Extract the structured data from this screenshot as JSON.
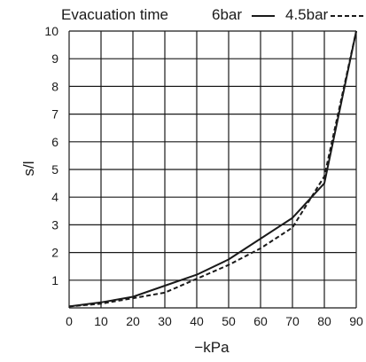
{
  "chart_data": {
    "type": "line",
    "title": "Evacuation time",
    "xlabel": "−kPa",
    "ylabel": "s/l",
    "xlim": [
      0,
      90
    ],
    "ylim": [
      0,
      10
    ],
    "x_ticks": [
      "0",
      "10",
      "20",
      "30",
      "40",
      "50",
      "60",
      "70",
      "80",
      "90"
    ],
    "y_ticks": [
      "1",
      "2",
      "3",
      "4",
      "5",
      "6",
      "7",
      "8",
      "9",
      "10"
    ],
    "grid": true,
    "legend_placement": "top-right",
    "series": [
      {
        "name": "6bar",
        "style": "solid",
        "color": "#1a1a1a",
        "x": [
          0,
          10,
          20,
          30,
          40,
          50,
          60,
          70,
          80,
          90
        ],
        "y": [
          0.05,
          0.2,
          0.4,
          0.8,
          1.2,
          1.75,
          2.5,
          3.25,
          4.5,
          10
        ]
      },
      {
        "name": "4.5bar",
        "style": "dashed",
        "color": "#1a1a1a",
        "x": [
          0,
          10,
          20,
          30,
          40,
          50,
          60,
          70,
          80,
          90
        ],
        "y": [
          0.05,
          0.15,
          0.35,
          0.55,
          1.05,
          1.55,
          2.15,
          2.9,
          4.75,
          10
        ]
      }
    ]
  }
}
